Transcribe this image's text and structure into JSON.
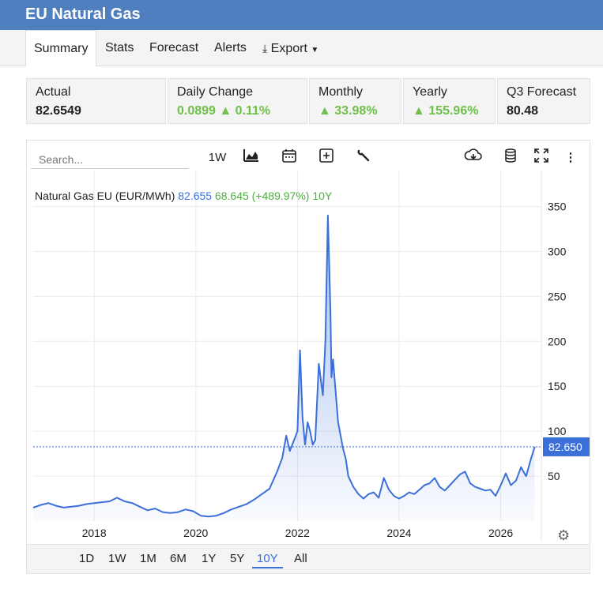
{
  "window": {
    "title": "EU Natural Gas"
  },
  "tabs": [
    {
      "label": "Summary",
      "active": true
    },
    {
      "label": "Stats"
    },
    {
      "label": "Forecast"
    },
    {
      "label": "Alerts"
    },
    {
      "label": "Export"
    }
  ],
  "stats": [
    {
      "label": "Actual",
      "value": "82.6549",
      "trend": "none"
    },
    {
      "label": "Daily Change",
      "value": "0.0899 ▲ 0.11%",
      "trend": "up"
    },
    {
      "label": "Monthly",
      "value": "▲ 33.98%",
      "trend": "up"
    },
    {
      "label": "Yearly",
      "value": "▲ 155.96%",
      "trend": "up"
    },
    {
      "label": "Q3 Forecast",
      "value": "80.48",
      "trend": "none"
    }
  ],
  "toolbar": {
    "search_placeholder": "Search...",
    "interval": "1W",
    "icons": [
      "area-chart-icon",
      "calendar-icon",
      "add-indicator-icon",
      "wrench-icon",
      "download-cloud-icon",
      "database-icon",
      "fullscreen-icon",
      "more-vertical-icon"
    ]
  },
  "legend": {
    "name": "Natural Gas EU (EUR/MWh)",
    "last": "82.655",
    "change": "68.645 (+489.97%) 10Y"
  },
  "range_buttons": [
    "1D",
    "1W",
    "1M",
    "6M",
    "1Y",
    "5Y",
    "10Y",
    "All"
  ],
  "active_range": "10Y",
  "colors": {
    "accent": "#3b6fd9",
    "up": "#6fbf4a",
    "header": "#4f7fbf"
  },
  "chart_data": {
    "type": "area",
    "ylim": [
      0,
      390
    ],
    "xlim": [
      2016.8,
      2026.8
    ],
    "y_ticks": [
      50,
      100,
      150,
      200,
      250,
      300,
      350
    ],
    "x_ticks": [
      2018,
      2020,
      2022,
      2024,
      2026
    ],
    "x_tick_labels": [
      "2018",
      "2020",
      "2022",
      "2024",
      "2026"
    ],
    "last_value_label": "82.650",
    "last_value": 82.65,
    "grid": true,
    "series": [
      {
        "x": [
          2016.8,
          2016.95,
          2017.1,
          2017.25,
          2017.4,
          2017.55,
          2017.7,
          2017.85,
          2018.0,
          2018.15,
          2018.3,
          2018.45,
          2018.6,
          2018.75,
          2018.9,
          2019.05,
          2019.2,
          2019.35,
          2019.5,
          2019.65,
          2019.8,
          2019.95,
          2020.1,
          2020.25,
          2020.4,
          2020.55,
          2020.7,
          2020.85,
          2021.0,
          2021.15,
          2021.3,
          2021.45,
          2021.6,
          2021.7,
          2021.78,
          2021.85,
          2021.92,
          2022.0,
          2022.05,
          2022.1,
          2022.15,
          2022.2,
          2022.25,
          2022.3,
          2022.35,
          2022.42,
          2022.5,
          2022.55,
          2022.6,
          2022.65,
          2022.67,
          2022.7,
          2022.75,
          2022.8,
          2022.85,
          2022.9,
          2022.95,
          2023.0,
          2023.1,
          2023.2,
          2023.3,
          2023.4,
          2023.5,
          2023.6,
          2023.7,
          2023.8,
          2023.9,
          2024.0,
          2024.1,
          2024.2,
          2024.3,
          2024.4,
          2024.5,
          2024.6,
          2024.7,
          2024.8,
          2024.9,
          2025.0,
          2025.1,
          2025.2,
          2025.3,
          2025.4,
          2025.5,
          2025.6,
          2025.7,
          2025.8,
          2025.9,
          2026.0,
          2026.1,
          2026.2,
          2026.3,
          2026.4,
          2026.5,
          2026.6,
          2026.67
        ],
        "values": [
          15,
          18,
          20,
          17,
          15,
          16,
          17,
          19,
          20,
          21,
          22,
          26,
          22,
          20,
          16,
          12,
          14,
          10,
          9,
          10,
          13,
          11,
          6,
          5,
          6,
          9,
          13,
          16,
          19,
          24,
          30,
          36,
          55,
          70,
          95,
          78,
          88,
          100,
          190,
          115,
          85,
          110,
          100,
          85,
          90,
          175,
          140,
          200,
          340,
          230,
          160,
          180,
          145,
          110,
          95,
          80,
          70,
          50,
          38,
          30,
          25,
          30,
          32,
          26,
          48,
          35,
          28,
          25,
          28,
          32,
          30,
          35,
          40,
          42,
          48,
          38,
          34,
          40,
          46,
          52,
          55,
          42,
          38,
          36,
          34,
          35,
          28,
          40,
          53,
          40,
          45,
          60,
          50,
          70,
          82.65
        ]
      }
    ]
  }
}
